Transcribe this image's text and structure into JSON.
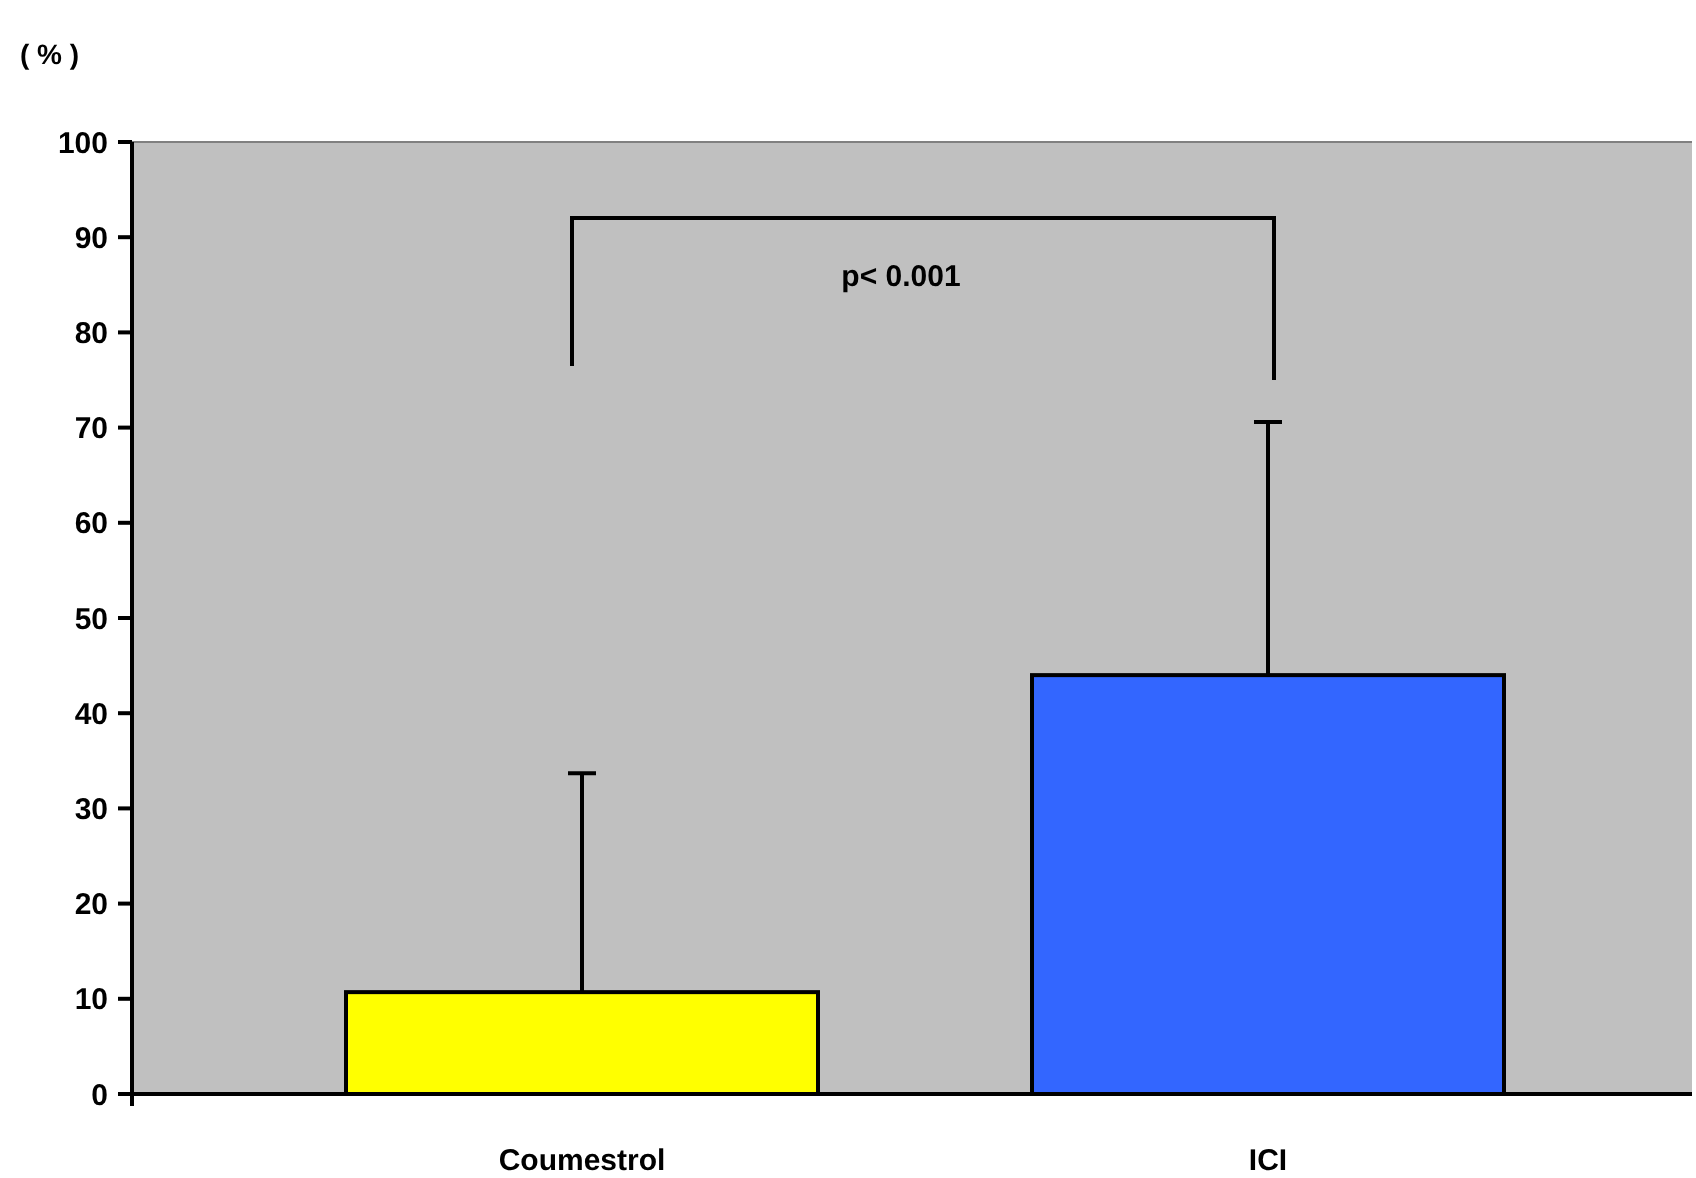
{
  "chart_data": {
    "type": "bar",
    "ylabel": "( % )",
    "categories": [
      "Coumestrol",
      "ICI"
    ],
    "values": [
      10.7,
      44
    ],
    "colors": [
      "#ffff00",
      "#3366ff"
    ],
    "errors": [
      [
        10.7,
        33.7
      ],
      [
        44,
        70.6
      ]
    ],
    "ylim": [
      0,
      100
    ],
    "yticks": [
      0,
      10,
      20,
      30,
      40,
      50,
      60,
      70,
      80,
      90,
      100
    ],
    "grid": false,
    "annotations": [
      "p< 0.001"
    ]
  }
}
